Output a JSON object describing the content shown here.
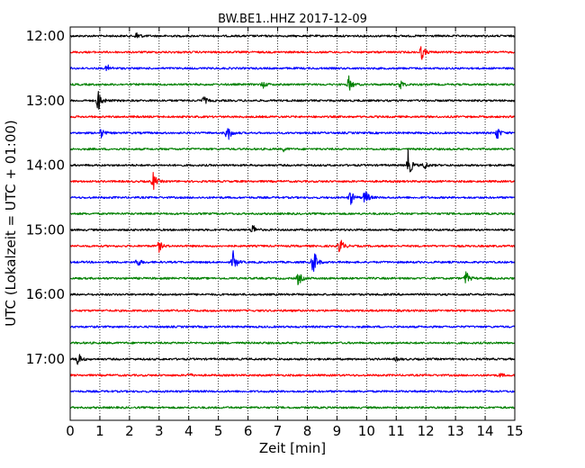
{
  "chart_data": {
    "type": "line",
    "title": "BW.BE1..HHZ 2017-12-09",
    "xlabel": "Zeit  [min]",
    "ylabel": "UTC (Lokalzeit = UTC + 01:00)",
    "xlim": [
      0,
      15
    ],
    "x_ticks": [
      "0",
      "1",
      "2",
      "3",
      "4",
      "5",
      "6",
      "7",
      "8",
      "9",
      "10",
      "11",
      "12",
      "13",
      "14",
      "15"
    ],
    "y_ticks": [
      "12:00",
      "13:00",
      "14:00",
      "15:00",
      "16:00",
      "17:00"
    ],
    "grid": true,
    "trace_colors": [
      "#000000",
      "#ff0000",
      "#0000ff",
      "#008000"
    ],
    "traces": [
      {
        "start": "12:00",
        "events": [
          {
            "t": 2.25,
            "amp": 5
          }
        ]
      },
      {
        "start": "12:15",
        "events": [
          {
            "t": 11.85,
            "amp": 9
          }
        ]
      },
      {
        "start": "12:30",
        "events": [
          {
            "t": 1.25,
            "amp": 4
          }
        ]
      },
      {
        "start": "12:45",
        "events": [
          {
            "t": 6.5,
            "amp": 4
          },
          {
            "t": 9.4,
            "amp": 9
          },
          {
            "t": 11.15,
            "amp": 5
          }
        ]
      },
      {
        "start": "13:00",
        "events": [
          {
            "t": 0.95,
            "amp": 13
          },
          {
            "t": 4.5,
            "amp": 5
          }
        ]
      },
      {
        "start": "13:15",
        "events": []
      },
      {
        "start": "13:30",
        "events": [
          {
            "t": 1.05,
            "amp": 5
          },
          {
            "t": 5.3,
            "amp": 12
          },
          {
            "t": 14.4,
            "amp": 8
          }
        ]
      },
      {
        "start": "13:45",
        "events": [
          {
            "t": 7.2,
            "amp": 2
          }
        ]
      },
      {
        "start": "14:00",
        "events": [
          {
            "t": 11.4,
            "amp": 17
          },
          {
            "t": 11.95,
            "amp": 5
          }
        ]
      },
      {
        "start": "14:15",
        "events": [
          {
            "t": 2.8,
            "amp": 10
          }
        ]
      },
      {
        "start": "14:30",
        "events": [
          {
            "t": 9.45,
            "amp": 9
          },
          {
            "t": 9.95,
            "amp": 10
          }
        ]
      },
      {
        "start": "14:45",
        "events": []
      },
      {
        "start": "15:00",
        "events": [
          {
            "t": 6.15,
            "amp": 7
          }
        ]
      },
      {
        "start": "15:15",
        "events": [
          {
            "t": 3.0,
            "amp": 6
          },
          {
            "t": 9.1,
            "amp": 11
          }
        ]
      },
      {
        "start": "15:30",
        "events": [
          {
            "t": 2.25,
            "amp": 6
          },
          {
            "t": 5.5,
            "amp": 12
          },
          {
            "t": 8.2,
            "amp": 18
          }
        ]
      },
      {
        "start": "15:45",
        "events": [
          {
            "t": 7.7,
            "amp": 8
          },
          {
            "t": 13.35,
            "amp": 8
          }
        ]
      },
      {
        "start": "16:00",
        "events": []
      },
      {
        "start": "16:15",
        "events": []
      },
      {
        "start": "16:30",
        "events": []
      },
      {
        "start": "16:45",
        "events": []
      },
      {
        "start": "17:00",
        "events": [
          {
            "t": 0.25,
            "amp": 9
          },
          {
            "t": 11.0,
            "amp": 2
          }
        ]
      },
      {
        "start": "17:15",
        "events": [
          {
            "t": 4.0,
            "amp": 2
          },
          {
            "t": 14.5,
            "amp": 2
          }
        ]
      },
      {
        "start": "17:30",
        "events": []
      },
      {
        "start": "17:45",
        "events": []
      }
    ]
  }
}
